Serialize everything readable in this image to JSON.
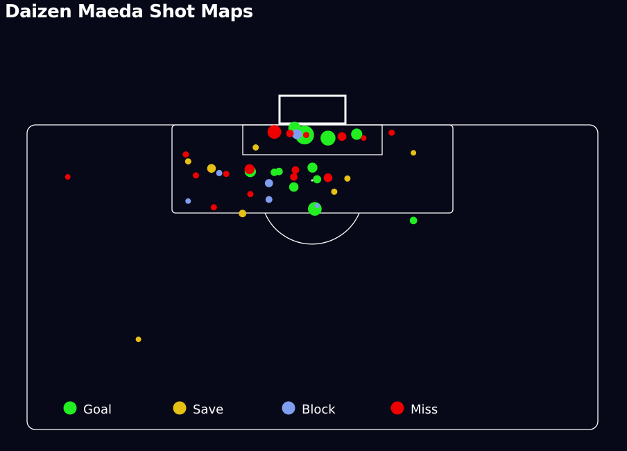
{
  "title": "Daizen Maeda Shot Maps",
  "colors": {
    "background": "#070818",
    "lines": "#ffffff",
    "goal": "#22ee22",
    "save": "#e6c014",
    "block": "#7f9ef0",
    "miss": "#ee0000"
  },
  "chart_data": {
    "type": "scatter",
    "title": "Daizen Maeda Shot Maps",
    "legend": {
      "position": "bottom",
      "items": [
        {
          "key": "goal",
          "label": "Goal"
        },
        {
          "key": "save",
          "label": "Save"
        },
        {
          "key": "block",
          "label": "Block"
        },
        {
          "key": "miss",
          "label": "Miss"
        }
      ]
    },
    "units": "x: metres from pitch centre line (left negative); y: metres from goal line; size: relative marker size (xG-like)",
    "series": [
      {
        "name": "Goal",
        "outcome": "goal",
        "points": [
          {
            "x": -1.0,
            "y": 1.3,
            "size": 3
          },
          {
            "x": -2.3,
            "y": 0.4,
            "size": 2
          },
          {
            "x": 2.0,
            "y": 1.7,
            "size": 2.4
          },
          {
            "x": 5.7,
            "y": 1.2,
            "size": 1.8
          },
          {
            "x": -8.0,
            "y": 6.0,
            "size": 1.8
          },
          {
            "x": 0.0,
            "y": 5.5,
            "size": 1.6
          },
          {
            "x": 0.6,
            "y": 7.0,
            "size": 1.3
          },
          {
            "x": -4.3,
            "y": 6.0,
            "size": 1.2
          },
          {
            "x": -4.9,
            "y": 6.1,
            "size": 1.2
          },
          {
            "x": -2.4,
            "y": 8.0,
            "size": 1.5
          },
          {
            "x": 0.3,
            "y": 10.8,
            "size": 2.2
          },
          {
            "x": 13.0,
            "y": 12.3,
            "size": 1.2
          }
        ]
      },
      {
        "name": "Save",
        "outcome": "save",
        "points": [
          {
            "x": -7.3,
            "y": 2.9,
            "size": 1
          },
          {
            "x": 13.0,
            "y": 3.6,
            "size": 0.9
          },
          {
            "x": -16.0,
            "y": 4.7,
            "size": 1
          },
          {
            "x": -13.0,
            "y": 5.6,
            "size": 1.4
          },
          {
            "x": 4.5,
            "y": 6.9,
            "size": 1
          },
          {
            "x": 2.8,
            "y": 8.6,
            "size": 1
          },
          {
            "x": -9.0,
            "y": 11.4,
            "size": 1.2
          },
          {
            "x": -22.4,
            "y": 27.6,
            "size": 0.9
          }
        ]
      },
      {
        "name": "Block",
        "outcome": "block",
        "points": [
          {
            "x": -2.0,
            "y": 1.2,
            "size": 1.6
          },
          {
            "x": -12.0,
            "y": 6.2,
            "size": 1
          },
          {
            "x": -5.6,
            "y": 7.5,
            "size": 1.3
          },
          {
            "x": -16.0,
            "y": 9.8,
            "size": 0.9
          },
          {
            "x": -5.6,
            "y": 9.6,
            "size": 1.1
          },
          {
            "x": 0.6,
            "y": 10.4,
            "size": 0.8
          }
        ]
      },
      {
        "name": "Miss",
        "outcome": "miss",
        "points": [
          {
            "x": -4.9,
            "y": 0.9,
            "size": 2.2
          },
          {
            "x": -2.9,
            "y": 1.1,
            "size": 1.2
          },
          {
            "x": -0.8,
            "y": 1.3,
            "size": 1
          },
          {
            "x": 3.8,
            "y": 1.5,
            "size": 1.4
          },
          {
            "x": 6.6,
            "y": 1.7,
            "size": 0.9
          },
          {
            "x": 10.2,
            "y": 1.0,
            "size": 1
          },
          {
            "x": -16.3,
            "y": 3.8,
            "size": 1
          },
          {
            "x": -15.0,
            "y": 6.5,
            "size": 1
          },
          {
            "x": -11.1,
            "y": 6.3,
            "size": 1
          },
          {
            "x": -8.1,
            "y": 5.7,
            "size": 1.6
          },
          {
            "x": -2.2,
            "y": 5.8,
            "size": 1.2
          },
          {
            "x": -2.4,
            "y": 6.7,
            "size": 1.2
          },
          {
            "x": 2.0,
            "y": 6.8,
            "size": 1.4
          },
          {
            "x": -8.0,
            "y": 8.9,
            "size": 1
          },
          {
            "x": -12.7,
            "y": 10.6,
            "size": 1
          },
          {
            "x": -31.5,
            "y": 6.7,
            "size": 0.9
          }
        ]
      }
    ]
  }
}
